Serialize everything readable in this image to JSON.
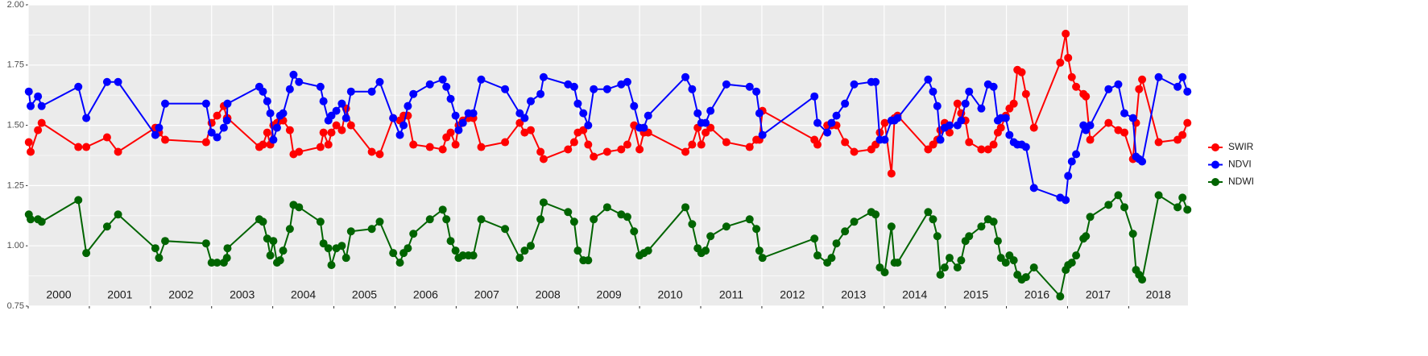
{
  "chart_data": {
    "type": "line",
    "x": [
      2000.01,
      2000.04,
      2000.16,
      2000.22,
      2000.82,
      2000.95,
      2001.29,
      2001.47,
      2002.08,
      2002.14,
      2002.24,
      2002.91,
      2003,
      2003.09,
      2003.2,
      2003.25,
      2003.26,
      2003.78,
      2003.84,
      2003.91,
      2003.96,
      2004.01,
      2004.07,
      2004.12,
      2004.17,
      2004.28,
      2004.34,
      2004.43,
      2004.78,
      2004.83,
      2004.91,
      2004.96,
      2005.04,
      2005.13,
      2005.2,
      2005.28,
      2005.62,
      2005.75,
      2005.97,
      2006.08,
      2006.14,
      2006.21,
      2006.3,
      2006.57,
      2006.78,
      2006.84,
      2006.91,
      2006.99,
      2007.04,
      2007.11,
      2007.2,
      2007.28,
      2007.41,
      2007.8,
      2008.04,
      2008.12,
      2008.22,
      2008.38,
      2008.43,
      2008.83,
      2008.93,
      2008.99,
      2009.08,
      2009.16,
      2009.25,
      2009.47,
      2009.7,
      2009.8,
      2009.91,
      2010,
      2010.07,
      2010.14,
      2010.75,
      2010.86,
      2010.95,
      2011.01,
      2011.08,
      2011.16,
      2011.42,
      2011.8,
      2011.91,
      2011.96,
      2012.01,
      2012.86,
      2012.91,
      2013.07,
      2013.14,
      2013.22,
      2013.36,
      2013.51,
      2013.79,
      2013.86,
      2013.93,
      2014.01,
      2014.12,
      2014.17,
      2014.22,
      2014.72,
      2014.8,
      2014.87,
      2014.92,
      2014.99,
      2015.07,
      2015.2,
      2015.26,
      2015.33,
      2015.39,
      2015.59,
      2015.7,
      2015.79,
      2015.86,
      2015.91,
      2015.99,
      2016.05,
      2016.12,
      2016.18,
      2016.25,
      2016.32,
      2016.45,
      2016.88,
      2016.97,
      2017.01,
      2017.07,
      2017.14,
      2017.26,
      2017.3,
      2017.37,
      2017.67,
      2017.83,
      2017.93,
      2018.07,
      2018.12,
      2018.17,
      2018.22,
      2018.49,
      2018.8,
      2018.88,
      2018.96
    ],
    "series": [
      {
        "name": "SWIR",
        "color": "#ff0000",
        "values": [
          1.43,
          1.39,
          1.48,
          1.51,
          1.41,
          1.41,
          1.45,
          1.39,
          1.49,
          1.47,
          1.44,
          1.43,
          1.51,
          1.54,
          1.58,
          1.53,
          1.53,
          1.41,
          1.42,
          1.47,
          1.42,
          1.5,
          1.51,
          1.52,
          1.52,
          1.48,
          1.38,
          1.39,
          1.41,
          1.47,
          1.42,
          1.47,
          1.5,
          1.48,
          1.57,
          1.5,
          1.39,
          1.38,
          1.53,
          1.52,
          1.54,
          1.54,
          1.42,
          1.41,
          1.4,
          1.45,
          1.47,
          1.42,
          1.5,
          1.52,
          1.53,
          1.53,
          1.41,
          1.43,
          1.51,
          1.47,
          1.48,
          1.39,
          1.36,
          1.4,
          1.43,
          1.47,
          1.48,
          1.42,
          1.37,
          1.39,
          1.4,
          1.42,
          1.5,
          1.4,
          1.47,
          1.47,
          1.39,
          1.42,
          1.49,
          1.42,
          1.47,
          1.49,
          1.43,
          1.41,
          1.44,
          1.44,
          1.56,
          1.44,
          1.42,
          1.5,
          1.5,
          1.5,
          1.43,
          1.39,
          1.4,
          1.42,
          1.47,
          1.51,
          1.3,
          1.53,
          1.54,
          1.4,
          1.42,
          1.44,
          1.48,
          1.51,
          1.47,
          1.59,
          1.55,
          1.52,
          1.43,
          1.4,
          1.4,
          1.42,
          1.47,
          1.49,
          1.54,
          1.57,
          1.59,
          1.73,
          1.72,
          1.63,
          1.49,
          1.76,
          1.88,
          1.78,
          1.7,
          1.66,
          1.63,
          1.62,
          1.44,
          1.51,
          1.48,
          1.47,
          1.36,
          1.51,
          1.65,
          1.69,
          1.43,
          1.44,
          1.46,
          1.51
        ]
      },
      {
        "name": "NDVI",
        "color": "#0000ff",
        "values": [
          1.64,
          1.58,
          1.62,
          1.58,
          1.66,
          1.53,
          1.68,
          1.68,
          1.46,
          1.49,
          1.59,
          1.59,
          1.47,
          1.45,
          1.49,
          1.52,
          1.59,
          1.66,
          1.64,
          1.6,
          1.55,
          1.44,
          1.49,
          1.54,
          1.55,
          1.65,
          1.71,
          1.68,
          1.66,
          1.6,
          1.52,
          1.54,
          1.56,
          1.59,
          1.53,
          1.64,
          1.64,
          1.68,
          1.53,
          1.46,
          1.5,
          1.58,
          1.63,
          1.67,
          1.69,
          1.66,
          1.61,
          1.54,
          1.48,
          1.51,
          1.55,
          1.55,
          1.69,
          1.65,
          1.55,
          1.53,
          1.6,
          1.63,
          1.7,
          1.67,
          1.66,
          1.59,
          1.55,
          1.5,
          1.65,
          1.65,
          1.67,
          1.68,
          1.58,
          1.49,
          1.49,
          1.54,
          1.7,
          1.65,
          1.55,
          1.51,
          1.51,
          1.56,
          1.67,
          1.66,
          1.64,
          1.55,
          1.46,
          1.62,
          1.51,
          1.47,
          1.51,
          1.54,
          1.59,
          1.67,
          1.68,
          1.68,
          1.44,
          1.44,
          1.52,
          1.52,
          1.53,
          1.69,
          1.64,
          1.58,
          1.44,
          1.49,
          1.5,
          1.5,
          1.52,
          1.59,
          1.64,
          1.57,
          1.67,
          1.66,
          1.52,
          1.53,
          1.53,
          1.46,
          1.43,
          1.42,
          1.42,
          1.41,
          1.24,
          1.2,
          1.19,
          1.29,
          1.35,
          1.38,
          1.5,
          1.48,
          1.5,
          1.65,
          1.67,
          1.55,
          1.53,
          1.37,
          1.36,
          1.35,
          1.7,
          1.66,
          1.7,
          1.64
        ]
      },
      {
        "name": "NDWI",
        "color": "#006400",
        "values": [
          1.13,
          1.11,
          1.11,
          1.1,
          1.19,
          0.97,
          1.08,
          1.13,
          0.99,
          0.95,
          1.02,
          1.01,
          0.93,
          0.93,
          0.93,
          0.95,
          0.99,
          1.11,
          1.1,
          1.03,
          0.96,
          1.02,
          0.93,
          0.94,
          0.98,
          1.07,
          1.17,
          1.16,
          1.1,
          1.01,
          0.99,
          0.92,
          0.99,
          1.0,
          0.95,
          1.06,
          1.07,
          1.1,
          0.97,
          0.93,
          0.97,
          0.99,
          1.05,
          1.11,
          1.15,
          1.11,
          1.02,
          0.98,
          0.95,
          0.96,
          0.96,
          0.96,
          1.11,
          1.07,
          0.95,
          0.98,
          1.0,
          1.11,
          1.18,
          1.14,
          1.1,
          0.98,
          0.94,
          0.94,
          1.11,
          1.16,
          1.13,
          1.12,
          1.06,
          0.96,
          0.97,
          0.98,
          1.16,
          1.09,
          0.99,
          0.97,
          0.98,
          1.04,
          1.08,
          1.11,
          1.07,
          0.98,
          0.95,
          1.03,
          0.96,
          0.93,
          0.95,
          1.01,
          1.06,
          1.1,
          1.14,
          1.13,
          0.91,
          0.89,
          1.08,
          0.93,
          0.93,
          1.14,
          1.11,
          1.04,
          0.88,
          0.91,
          0.95,
          0.91,
          0.94,
          1.02,
          1.04,
          1.08,
          1.11,
          1.1,
          1.02,
          0.95,
          0.93,
          0.96,
          0.94,
          0.88,
          0.86,
          0.87,
          0.91,
          0.79,
          0.9,
          0.92,
          0.93,
          0.96,
          1.03,
          1.04,
          1.12,
          1.17,
          1.21,
          1.16,
          1.05,
          0.9,
          0.88,
          0.86,
          1.21,
          1.16,
          1.2,
          1.15
        ]
      }
    ],
    "year_labels": [
      "2000",
      "2001",
      "2002",
      "2003",
      "2004",
      "2005",
      "2006",
      "2007",
      "2008",
      "2009",
      "2010",
      "2011",
      "2012",
      "2013",
      "2014",
      "2015",
      "2016",
      "2017",
      "2018"
    ],
    "xlim": [
      2000,
      2018.97
    ],
    "xticks": [
      2000,
      2001,
      2002,
      2003,
      2004,
      2005,
      2006,
      2007,
      2008,
      2009,
      2010,
      2011,
      2012,
      2013,
      2014,
      2015,
      2016,
      2017,
      2018
    ],
    "ylim": [
      0.75,
      2
    ],
    "yticks": [
      0.75,
      {
        "value": 1,
        "label": "1.00"
      },
      1.25,
      {
        "value": 1.5,
        "label": "1.50"
      },
      1.75,
      {
        "value": 2,
        "label": "2.00"
      }
    ],
    "grid": true,
    "legend": "right"
  }
}
